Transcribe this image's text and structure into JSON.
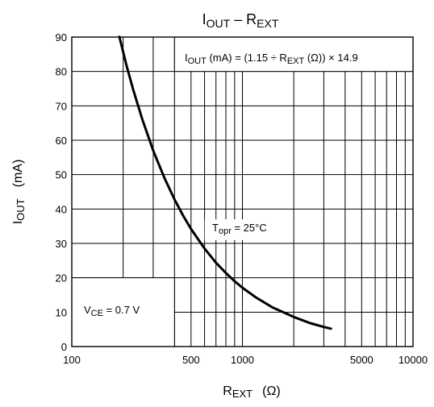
{
  "chart_data": {
    "type": "line",
    "title": {
      "main": "I",
      "sub": "OUT",
      "sep": " – R",
      "sub2": "EXT"
    },
    "xlabel": {
      "main": "R",
      "sub": "EXT",
      "unit": "(Ω)"
    },
    "ylabel": {
      "main": "I",
      "sub": "OUT",
      "unit": "(mA)"
    },
    "xscale": "log",
    "xlim": [
      100,
      10000
    ],
    "ylim": [
      0,
      90
    ],
    "x_ticks": [
      {
        "value": 100,
        "label": "100"
      },
      {
        "value": 500,
        "label": "500"
      },
      {
        "value": 1000,
        "label": "1000"
      },
      {
        "value": 5000,
        "label": "5000"
      },
      {
        "value": 10000,
        "label": "10000"
      }
    ],
    "y_ticks": [
      {
        "value": 0,
        "label": "0"
      },
      {
        "value": 10,
        "label": "10"
      },
      {
        "value": 20,
        "label": "20"
      },
      {
        "value": 30,
        "label": "30"
      },
      {
        "value": 40,
        "label": "40"
      },
      {
        "value": 50,
        "label": "50"
      },
      {
        "value": 60,
        "label": "60"
      },
      {
        "value": 70,
        "label": "70"
      },
      {
        "value": 80,
        "label": "80"
      },
      {
        "value": 90,
        "label": "90"
      }
    ],
    "grid": true,
    "series": [
      {
        "x": [
          190,
          210,
          230,
          260,
          300,
          350,
          400,
          450,
          500,
          600,
          700,
          800,
          900,
          1000,
          1200,
          1500,
          2000,
          2500,
          3000,
          3300
        ],
        "y": [
          90.1,
          81.5,
          74.4,
          65.8,
          57.0,
          48.9,
          42.8,
          38.0,
          34.2,
          28.5,
          24.4,
          21.4,
          19.0,
          17.1,
          14.3,
          11.4,
          8.6,
          6.8,
          5.7,
          5.2
        ]
      }
    ],
    "annotations": {
      "formula": {
        "p1": "I",
        "p1sub": "OUT",
        "p2": " (mA) = (1.15 ÷ R",
        "p2sub": "EXT",
        "p3": " (Ω)) × 14.9"
      },
      "temperature": {
        "p1": "T",
        "p1sub": "opr",
        "p2": " = 25°C"
      },
      "vce": {
        "p1": "V",
        "p1sub": "CE",
        "p2": " = 0.7 V"
      }
    }
  }
}
